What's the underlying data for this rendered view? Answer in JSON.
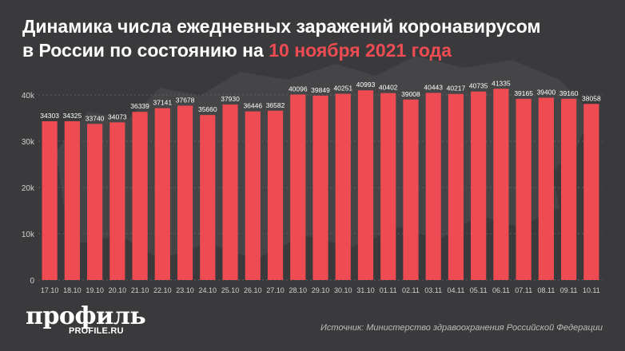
{
  "title": {
    "line1": "Динамика числа ежедневных заражений коронавирусом",
    "line2_prefix": "в России по состоянию на ",
    "line2_highlight": "10 ноября 2021 года"
  },
  "branding": {
    "logo_text": "профиль",
    "logo_sub": "PROFILE.RU"
  },
  "source": "Источник: Министерство здравоохранения Российской Федерации",
  "colors": {
    "background": "#3a3a3c",
    "bar": "#ef4b52",
    "accent": "#ef4b52"
  },
  "chart_data": {
    "type": "bar",
    "title": "Динамика числа ежедневных заражений коронавирусом в России по состоянию на 10 ноября 2021 года",
    "xlabel": "",
    "ylabel": "",
    "ylim": [
      0,
      40000
    ],
    "yticks": [
      0,
      10000,
      20000,
      30000,
      40000
    ],
    "ytick_labels": [
      "0",
      "10k",
      "20k",
      "30k",
      "40k"
    ],
    "grid": true,
    "legend": "none",
    "categories": [
      "17.10",
      "18.10",
      "19.10",
      "20.10",
      "21.10",
      "22.10",
      "23.10",
      "24.10",
      "25.10",
      "26.10",
      "27.10",
      "28.10",
      "29.10",
      "30.10",
      "31.10",
      "01.11",
      "02.11",
      "03.11",
      "04.11",
      "05.11",
      "06.11",
      "07.11",
      "08.11",
      "09.11",
      "10.11"
    ],
    "values": [
      34303,
      34325,
      33740,
      34073,
      36339,
      37141,
      37678,
      35660,
      37930,
      36446,
      36582,
      40096,
      39849,
      40251,
      40993,
      40402,
      39008,
      40443,
      40217,
      40735,
      41335,
      39165,
      39400,
      39160,
      38058
    ]
  }
}
